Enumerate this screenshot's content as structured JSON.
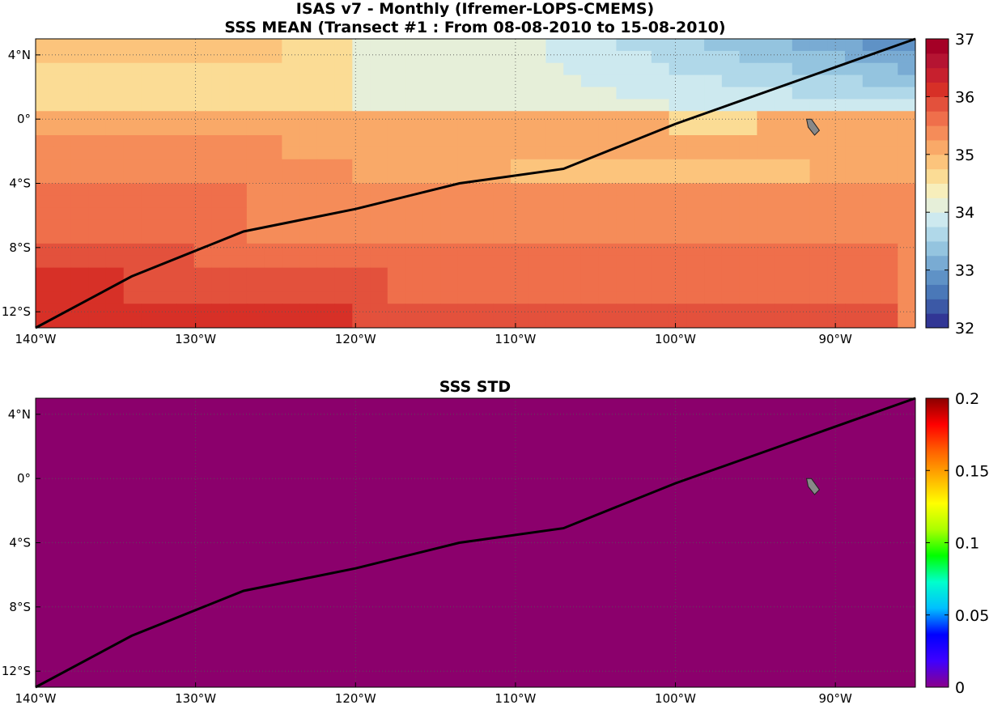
{
  "titles": {
    "main_line1": "ISAS v7 - Monthly (Ifremer-LOPS-CMEMS)",
    "main_line2": "SSS MEAN (Transect #1 : From 08-08-2010 to 15-08-2010)",
    "std_panel": "SSS STD"
  },
  "map": {
    "lon_range": [
      -140,
      -85
    ],
    "lat_range": [
      -13,
      5
    ],
    "lon_ticks": [
      {
        "value": -140,
        "label": "140°W"
      },
      {
        "value": -130,
        "label": "130°W"
      },
      {
        "value": -120,
        "label": "120°W"
      },
      {
        "value": -110,
        "label": "110°W"
      },
      {
        "value": -100,
        "label": "100°W"
      },
      {
        "value": -90,
        "label": "90°W"
      }
    ],
    "lat_ticks": [
      {
        "value": 4,
        "label": "4°N"
      },
      {
        "value": 0,
        "label": "0°"
      },
      {
        "value": -4,
        "label": "4°S"
      },
      {
        "value": -8,
        "label": "8°S"
      },
      {
        "value": -12,
        "label": "12°S"
      }
    ],
    "transect": [
      [
        -140,
        -13
      ],
      [
        -134,
        -9.8
      ],
      [
        -127,
        -7
      ],
      [
        -120,
        -5.6
      ],
      [
        -113.5,
        -4
      ],
      [
        -107,
        -3.1
      ],
      [
        -100,
        -0.3
      ],
      [
        -85,
        5
      ]
    ],
    "island": [
      [
        -91.5,
        0
      ],
      [
        -91,
        -0.7
      ],
      [
        -91.3,
        -1
      ],
      [
        -91.7,
        -0.5
      ],
      [
        -91.8,
        0
      ]
    ],
    "land_color": "#888888",
    "transect_color": "#000000"
  },
  "mean_panel": {
    "colorbar_ticks": [
      {
        "value": 37,
        "label": "37"
      },
      {
        "value": 36,
        "label": "36"
      },
      {
        "value": 35,
        "label": "35"
      },
      {
        "value": 34,
        "label": "34"
      },
      {
        "value": 33,
        "label": "33"
      },
      {
        "value": 32,
        "label": "32"
      }
    ],
    "colorbar_range": [
      32,
      37
    ],
    "colorbar_colors": [
      "#313695",
      "#3c59a6",
      "#4a78b8",
      "#5f92c6",
      "#79abd3",
      "#94c4df",
      "#b0d8e9",
      "#cde9ef",
      "#e6efd9",
      "#f7eebb",
      "#fbdc95",
      "#fcc47c",
      "#f9a968",
      "#f58c59",
      "#ef6f4b",
      "#e3513c",
      "#d73027",
      "#c7202e",
      "#b51432",
      "#a50026"
    ],
    "field_bands": [
      {
        "lon_start": -140,
        "lon_end": -85,
        "lat_start": 5,
        "lat_end": -13,
        "color": "#f7eebb"
      }
    ]
  },
  "std_panel": {
    "colorbar_ticks": [
      {
        "value": 0.2,
        "label": "0.2"
      },
      {
        "value": 0.15,
        "label": "0.15"
      },
      {
        "value": 0.1,
        "label": "0.1"
      },
      {
        "value": 0.05,
        "label": "0.05"
      },
      {
        "value": 0,
        "label": "0"
      }
    ],
    "colorbar_range": [
      0,
      0.2
    ],
    "colorbar_stops": [
      "#8b008b",
      "#3f00ff",
      "#0000ff",
      "#00bfff",
      "#00ffcc",
      "#00ff00",
      "#aaff00",
      "#ffff00",
      "#ffb000",
      "#ff6000",
      "#ff0000",
      "#8b0000"
    ],
    "field_color": "#8b006c"
  }
}
